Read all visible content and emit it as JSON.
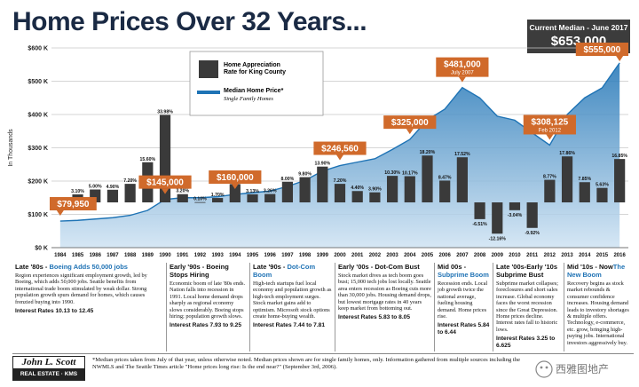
{
  "title": "Home Prices Over 32 Years...",
  "median_box": {
    "label": "Current Median - June 2017",
    "value": "$653,000"
  },
  "legend": {
    "bar_label": "Home Appreciation Rate for King County",
    "area_label": "Median Home Price*",
    "area_sub": "Single Family Homes"
  },
  "colors": {
    "bar": "#3a3a3a",
    "area_dark": "#1e73b5",
    "area_light": "#cfe3f3",
    "callout": "#d06a2b",
    "grid": "#c8c8c8"
  },
  "chart_data": {
    "type": "bar",
    "x": [
      "1984",
      "1985",
      "1986",
      "1987",
      "1988",
      "1989",
      "1990",
      "1991",
      "1992",
      "1993",
      "1994",
      "1995",
      "1996",
      "1997",
      "1998",
      "1999",
      "2000",
      "2001",
      "2002",
      "2003",
      "2004",
      "2005",
      "2006",
      "2007",
      "2008",
      "2009",
      "2010",
      "2011",
      "2012",
      "2013",
      "2014",
      "2015",
      "2016"
    ],
    "series": [
      {
        "name": "Home Appreciation Rate for King County",
        "values": [
          null,
          3.1,
          5.0,
          4.9,
          7.2,
          15.6,
          33.98,
          3.2,
          0.1,
          1.7,
          7.11,
          3.13,
          3.26,
          8.0,
          9.8,
          13.9,
          7.2,
          4.4,
          3.9,
          10.3,
          10.17,
          18.2,
          8.47,
          17.52,
          -6.51,
          -12.16,
          -3.04,
          -9.92,
          8.77,
          17.86,
          7.85,
          5.63,
          16.85
        ],
        "labels": [
          "",
          "3.10%",
          "5.00%",
          "4.90%",
          "7.20%",
          "15.60%",
          "33.98%",
          "3.20%",
          "0.10%",
          "1.70%",
          "7.11%",
          "3.13%",
          "3.26%",
          "8.00%",
          "9.80%",
          "13.90%",
          "7.20%",
          "4.40%",
          "3.90%",
          "10.30%",
          "10.17%",
          "18.20%",
          "8.47%",
          "17.52%",
          "-6.51%",
          "-12.16%",
          "-3.04%",
          "-9.92%",
          "8.77%",
          "17.86%",
          "7.85%",
          "5.63%",
          "16.85%"
        ]
      },
      {
        "name": "Median Home Price*",
        "values": [
          79.95,
          82,
          86,
          90,
          97,
          112,
          145,
          150,
          150,
          153,
          160,
          165,
          170,
          184,
          202,
          230,
          246.56,
          257,
          267,
          295,
          325,
          384,
          416,
          481,
          450,
          395,
          383,
          345,
          308.125,
          400,
          450,
          480,
          555
        ]
      }
    ],
    "callouts": [
      {
        "year": "1984",
        "text": "$79,950"
      },
      {
        "year": "1990",
        "text": "$145,000"
      },
      {
        "year": "1994",
        "text": "$160,000"
      },
      {
        "year": "2000",
        "text": "$246,560"
      },
      {
        "year": "2004",
        "text": "$325,000"
      },
      {
        "year": "2007",
        "text": "$481,000",
        "sub": "July 2007"
      },
      {
        "year": "2012",
        "text": "$308,125",
        "sub": "Feb 2012"
      },
      {
        "year": "2016",
        "text": "$555,000"
      }
    ],
    "y_ticks": [
      "$0 K",
      "$100 K",
      "$200 K",
      "$300 K",
      "$400 K",
      "$500 K",
      "$600 K"
    ],
    "ylabel": "In Thousands",
    "ylim": [
      0,
      600
    ]
  },
  "panels": [
    {
      "title": "Late '80s - ",
      "highlight": "Boeing Adds 50,000 jobs",
      "body": "Region experiences significant employment growth, led by Boeing, which adds 50,000 jobs. Seattle benefits from international trade boom stimulated by weak dollar. Strong population growth spurs demand for homes, which causes frenzied buying into 1990.",
      "rates": "Interest Rates 10.13 to 12.45"
    },
    {
      "title": "Early '90s - Boeing Stops Hiring",
      "highlight": "",
      "body": "Economic boom of late '80s ends. Nation falls into recession in 1991. Local home demand drops sharply as regional economy slows considerably. Boeing stops hiring; population growth slows.",
      "rates": "Interest Rates 7.93 to 9.25"
    },
    {
      "title": "Late '90s - ",
      "highlight": "Dot-Com Boom",
      "body": "High-tech startups fuel local economy and population growth as high-tech employment surges. Stock market gains add to optimism. Microsoft stock options create home-buying wealth.",
      "rates": "Interest Rates 7.44 to 7.81"
    },
    {
      "title": "Early '00s - Dot-Com Bust",
      "highlight": "",
      "body": "Stock market dives as tech boom goes bust; 15,000 tech jobs lost locally. Seattle area enters recession as Boeing cuts more than 30,000 jobs. Housing demand drops, but lowest mortgage rates in 40 years keep market from bottoming out.",
      "rates": "Interest Rates 5.83 to 8.05"
    },
    {
      "title": "Mid 00s - ",
      "highlight": "Subprime Boom",
      "body": "Recession ends. Local job growth twice the national average, fueling housing demand. Home prices rise.",
      "rates": "Interest Rates 5.84 to 6.44"
    },
    {
      "title": "Late '00s-Early '10s Subprime Bust",
      "highlight": "",
      "body": "Subprime market collapses; foreclosures and short sales increase. Global economy faces the worst recession since the Great Depression. Home prices decline. Interest rates fall to historic lows.",
      "rates": "Interest Rates 3.25 to 6.625"
    },
    {
      "title": "Mid '10s - Now",
      "highlight": "The New Boom",
      "body": "Recovery begins as stock market rebounds & consumer confidence increases. Housing demand leads to investory shortages & multiple offers. Technology, e-commerce, etc. grow, bringing high-paying jobs. International investors aggressively buy.",
      "rates": ""
    }
  ],
  "footer": {
    "logo_top": "John L. Scott",
    "logo_bottom": "REAL ESTATE · KMS",
    "note": "*Median prices taken from July of that year, unless otherwise noted. Median prices shown are for single family homes, only. Information gathered from multiple sources including the NWMLS and The Seattle Times article \"Home prices long rise: Is the end near?\" (September 3rd, 2006).",
    "watermark": "西雅图地产"
  }
}
